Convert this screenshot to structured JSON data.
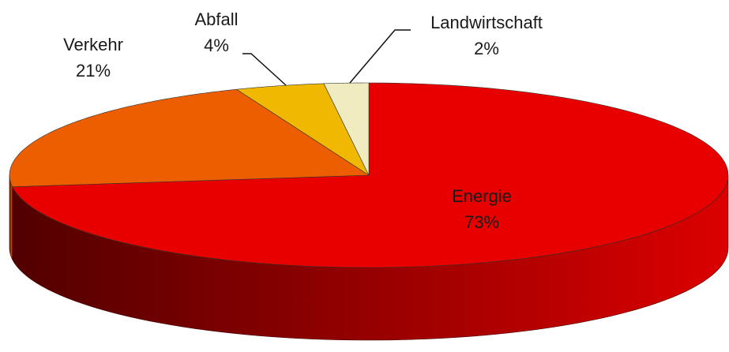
{
  "chart_data": {
    "type": "pie",
    "categories": [
      "Energie",
      "Verkehr",
      "Abfall",
      "Landwirtschaft"
    ],
    "values": [
      73,
      21,
      4,
      2
    ],
    "value_labels": [
      "73%",
      "21%",
      "4%",
      "2%"
    ],
    "colors": [
      "#e80000",
      "#ec5e00",
      "#f0b800",
      "#f0ecc0"
    ]
  }
}
